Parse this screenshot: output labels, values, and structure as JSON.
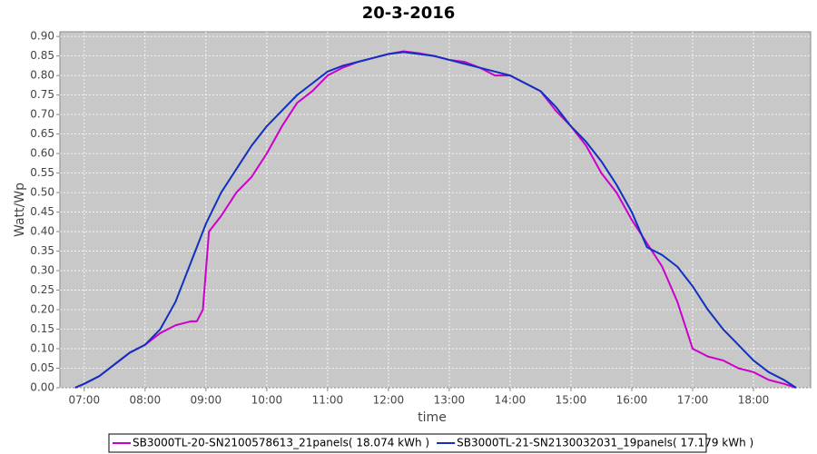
{
  "chart_data": {
    "type": "line",
    "title": "20-3-2016",
    "x_label": "time",
    "y_label": "Watt/Wp",
    "xlim": [
      6.6,
      18.94
    ],
    "ylim": [
      0,
      0.912
    ],
    "grid": true,
    "legend": "bottom",
    "xticks": [
      {
        "value": 7,
        "label": "07:00"
      },
      {
        "value": 8,
        "label": "08:00"
      },
      {
        "value": 9,
        "label": "09:00"
      },
      {
        "value": 10,
        "label": "10:00"
      },
      {
        "value": 11,
        "label": "11:00"
      },
      {
        "value": 12,
        "label": "12:00"
      },
      {
        "value": 13,
        "label": "13:00"
      },
      {
        "value": 14,
        "label": "14:00"
      },
      {
        "value": 15,
        "label": "15:00"
      },
      {
        "value": 16,
        "label": "16:00"
      },
      {
        "value": 17,
        "label": "17:00"
      },
      {
        "value": 18,
        "label": "18:00"
      }
    ],
    "yticks": [
      {
        "value": 0,
        "label": "0.00"
      },
      {
        "value": 0.05,
        "label": "0.05"
      },
      {
        "value": 0.1,
        "label": "0.10"
      },
      {
        "value": 0.15,
        "label": "0.15"
      },
      {
        "value": 0.2,
        "label": "0.20"
      },
      {
        "value": 0.25,
        "label": "0.25"
      },
      {
        "value": 0.3,
        "label": "0.30"
      },
      {
        "value": 0.35,
        "label": "0.35"
      },
      {
        "value": 0.4,
        "label": "0.40"
      },
      {
        "value": 0.45,
        "label": "0.45"
      },
      {
        "value": 0.5,
        "label": "0.50"
      },
      {
        "value": 0.55,
        "label": "0.55"
      },
      {
        "value": 0.6,
        "label": "0.60"
      },
      {
        "value": 0.65,
        "label": "0.65"
      },
      {
        "value": 0.7,
        "label": "0.70"
      },
      {
        "value": 0.75,
        "label": "0.75"
      },
      {
        "value": 0.8,
        "label": "0.80"
      },
      {
        "value": 0.85,
        "label": "0.85"
      },
      {
        "value": 0.9,
        "label": "0.90"
      }
    ],
    "series": [
      {
        "name": "SB3000TL-20-SN2100578613_21panels( 18.074 kWh )",
        "color": "#cc00cc",
        "x": [
          6.85,
          7,
          7.25,
          7.5,
          7.75,
          8,
          8.25,
          8.5,
          8.75,
          8.85,
          8.95,
          9.05,
          9.25,
          9.5,
          9.75,
          10,
          10.25,
          10.5,
          10.75,
          11,
          11.25,
          11.5,
          11.75,
          12,
          12.25,
          12.5,
          12.75,
          13,
          13.25,
          13.5,
          13.75,
          14,
          14.25,
          14.5,
          14.75,
          15,
          15.25,
          15.5,
          15.75,
          16,
          16.25,
          16.5,
          16.75,
          17,
          17.25,
          17.5,
          17.75,
          18,
          18.25,
          18.5,
          18.7
        ],
        "values": [
          0,
          0.01,
          0.03,
          0.06,
          0.09,
          0.11,
          0.14,
          0.16,
          0.17,
          0.17,
          0.2,
          0.4,
          0.44,
          0.5,
          0.54,
          0.6,
          0.67,
          0.73,
          0.76,
          0.8,
          0.82,
          0.835,
          0.845,
          0.855,
          0.862,
          0.857,
          0.85,
          0.84,
          0.835,
          0.82,
          0.8,
          0.8,
          0.78,
          0.76,
          0.71,
          0.67,
          0.62,
          0.55,
          0.5,
          0.43,
          0.37,
          0.31,
          0.22,
          0.1,
          0.08,
          0.07,
          0.05,
          0.04,
          0.02,
          0.01,
          0
        ]
      },
      {
        "name": "SB3000TL-21-SN2130032031_19panels( 17.179 kWh )",
        "color": "#1030c0",
        "x": [
          6.85,
          7,
          7.25,
          7.5,
          7.75,
          8,
          8.25,
          8.5,
          8.75,
          9,
          9.25,
          9.5,
          9.75,
          10,
          10.25,
          10.5,
          10.75,
          11,
          11.25,
          11.5,
          11.75,
          12,
          12.25,
          12.5,
          12.75,
          13,
          13.25,
          13.5,
          13.75,
          14,
          14.25,
          14.5,
          14.75,
          15,
          15.25,
          15.5,
          15.75,
          16,
          16.25,
          16.5,
          16.75,
          17,
          17.25,
          17.5,
          17.75,
          18,
          18.25,
          18.5,
          18.7
        ],
        "values": [
          0,
          0.01,
          0.03,
          0.06,
          0.09,
          0.11,
          0.15,
          0.22,
          0.32,
          0.42,
          0.5,
          0.56,
          0.62,
          0.67,
          0.71,
          0.75,
          0.78,
          0.81,
          0.825,
          0.835,
          0.845,
          0.855,
          0.86,
          0.855,
          0.85,
          0.84,
          0.83,
          0.82,
          0.81,
          0.8,
          0.78,
          0.76,
          0.72,
          0.67,
          0.63,
          0.58,
          0.52,
          0.45,
          0.36,
          0.34,
          0.31,
          0.26,
          0.2,
          0.15,
          0.11,
          0.07,
          0.04,
          0.02,
          0
        ]
      }
    ]
  }
}
